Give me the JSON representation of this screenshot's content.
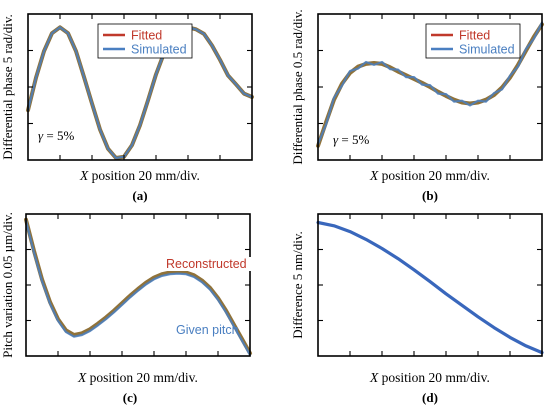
{
  "chart_data": [
    {
      "type": "line",
      "panel": "(a)",
      "ylabel": "Differential phase 5 rad/div.",
      "xlabel": "X position 20 mm/div.",
      "annotation": "γ = 5%",
      "legend": [
        "Fitted",
        "Simulated"
      ],
      "legend_position": "top-right",
      "x_divisions": 7,
      "y_divisions": 4,
      "xlim": [
        0,
        7
      ],
      "ylim": [
        -4,
        0.4
      ],
      "series": [
        {
          "name": "Fitted",
          "color": "#c0392b",
          "x": [
            0,
            0.25,
            0.5,
            0.75,
            1,
            1.25,
            1.5,
            1.75,
            2,
            2.25,
            2.5,
            2.75,
            3,
            3.25,
            3.5,
            3.75,
            4,
            4.25,
            4.5,
            4.75,
            5,
            5.25,
            5.5,
            5.75,
            6,
            6.25,
            6.5,
            6.75,
            7
          ],
          "y": [
            -2.5,
            -1.52,
            -0.72,
            -0.18,
            0,
            -0.18,
            -0.72,
            -1.5,
            -2.3,
            -3.08,
            -3.66,
            -3.94,
            -3.9,
            -3.55,
            -2.95,
            -2.2,
            -1.42,
            -0.78,
            -0.32,
            -0.04,
            0,
            -0.06,
            -0.2,
            -0.55,
            -0.98,
            -1.45,
            -1.72,
            -2.0,
            -2.1
          ]
        },
        {
          "name": "Simulated",
          "color": "#4a7fc1",
          "x": [
            0,
            0.25,
            0.5,
            0.75,
            1,
            1.25,
            1.5,
            1.75,
            2,
            2.25,
            2.5,
            2.75,
            3,
            3.25,
            3.5,
            3.75,
            4,
            4.25,
            4.5,
            4.75,
            5,
            5.25,
            5.5,
            5.75,
            6,
            6.25,
            6.5,
            6.75,
            7
          ],
          "y": [
            -2.5,
            -1.52,
            -0.72,
            -0.18,
            0,
            -0.18,
            -0.72,
            -1.5,
            -2.3,
            -3.08,
            -3.66,
            -3.94,
            -3.9,
            -3.55,
            -2.95,
            -2.2,
            -1.42,
            -0.78,
            -0.32,
            -0.04,
            0,
            -0.06,
            -0.2,
            -0.55,
            -0.98,
            -1.45,
            -1.72,
            -2.0,
            -2.1
          ]
        }
      ]
    },
    {
      "type": "line",
      "panel": "(b)",
      "ylabel": "Differential phase 0.5 rad/div.",
      "xlabel": "X position 20 mm/div.",
      "annotation": "γ = 5%",
      "legend": [
        "Fitted",
        "Simulated"
      ],
      "legend_position": "top-right",
      "x_divisions": 7,
      "y_divisions": 4,
      "xlim": [
        0,
        7
      ],
      "ylim": [
        -2.0,
        1.1
      ],
      "series": [
        {
          "name": "Fitted",
          "color": "#c0392b",
          "x": [
            0,
            0.25,
            0.5,
            0.75,
            1,
            1.25,
            1.5,
            1.75,
            2,
            2.25,
            2.5,
            2.75,
            3,
            3.25,
            3.5,
            3.75,
            4,
            4.25,
            4.5,
            4.75,
            5,
            5.25,
            5.5,
            5.75,
            6,
            6.25,
            6.5,
            6.75,
            7
          ],
          "y": [
            -1.7,
            -1.2,
            -0.72,
            -0.38,
            -0.15,
            -0.02,
            0.04,
            0.06,
            0.04,
            -0.03,
            -0.12,
            -0.2,
            -0.28,
            -0.36,
            -0.45,
            -0.55,
            -0.64,
            -0.72,
            -0.78,
            -0.8,
            -0.78,
            -0.72,
            -0.62,
            -0.46,
            -0.25,
            0.02,
            0.32,
            0.62,
            0.88
          ]
        },
        {
          "name": "Simulated",
          "color": "#4a7fc1",
          "x": [
            0,
            0.25,
            0.5,
            0.75,
            1,
            1.25,
            1.5,
            1.75,
            2,
            2.25,
            2.5,
            2.75,
            3,
            3.25,
            3.5,
            3.75,
            4,
            4.25,
            4.5,
            4.75,
            5,
            5.25,
            5.5,
            5.75,
            6,
            6.25,
            6.5,
            6.75,
            7
          ],
          "y": [
            -1.66,
            -1.25,
            -0.68,
            -0.42,
            -0.11,
            -0.06,
            0.08,
            0.02,
            0.08,
            -0.07,
            -0.08,
            -0.24,
            -0.24,
            -0.4,
            -0.41,
            -0.59,
            -0.6,
            -0.76,
            -0.74,
            -0.84,
            -0.74,
            -0.76,
            -0.58,
            -0.5,
            -0.21,
            -0.02,
            0.36,
            0.58,
            0.92
          ]
        }
      ]
    },
    {
      "type": "line",
      "panel": "(c)",
      "ylabel": "Pitch variation 0.05 µm/div.",
      "xlabel": "X position 20 mm/div.",
      "annotations": [
        "Reconstructed",
        "Given pitch"
      ],
      "x_divisions": 7,
      "y_divisions": 4,
      "xlim": [
        0,
        7
      ],
      "ylim": [
        -2.4,
        0.1
      ],
      "series": [
        {
          "name": "Reconstructed",
          "color": "#c0392b",
          "x": [
            0,
            0.25,
            0.5,
            0.75,
            1,
            1.25,
            1.5,
            1.75,
            2,
            2.25,
            2.5,
            2.75,
            3,
            3.25,
            3.5,
            3.75,
            4,
            4.25,
            4.5,
            4.75,
            5,
            5.25,
            5.5,
            5.75,
            6,
            6.25,
            6.5,
            6.75,
            7
          ],
          "y": [
            0,
            -0.55,
            -1.05,
            -1.45,
            -1.75,
            -1.95,
            -2.03,
            -2.0,
            -1.93,
            -1.83,
            -1.72,
            -1.6,
            -1.47,
            -1.34,
            -1.22,
            -1.11,
            -1.02,
            -0.96,
            -0.93,
            -0.92,
            -0.93,
            -0.98,
            -1.07,
            -1.2,
            -1.38,
            -1.6,
            -1.85,
            -2.1,
            -2.35
          ]
        },
        {
          "name": "Given pitch",
          "color": "#4a7fc1",
          "x": [
            0,
            0.25,
            0.5,
            0.75,
            1,
            1.25,
            1.5,
            1.75,
            2,
            2.25,
            2.5,
            2.75,
            3,
            3.25,
            3.5,
            3.75,
            4,
            4.25,
            4.5,
            4.75,
            5,
            5.25,
            5.5,
            5.75,
            6,
            6.25,
            6.5,
            6.75,
            7
          ],
          "y": [
            -0.02,
            -0.58,
            -1.08,
            -1.48,
            -1.78,
            -1.98,
            -2.06,
            -2.03,
            -1.96,
            -1.86,
            -1.75,
            -1.63,
            -1.5,
            -1.37,
            -1.25,
            -1.14,
            -1.05,
            -0.99,
            -0.96,
            -0.95,
            -0.96,
            -1.01,
            -1.1,
            -1.23,
            -1.41,
            -1.63,
            -1.88,
            -2.13,
            -2.38
          ]
        }
      ]
    },
    {
      "type": "line",
      "panel": "(d)",
      "ylabel": "Difference 5 nm/div.",
      "xlabel": "X position 20 mm/div.",
      "x_divisions": 7,
      "y_divisions": 4,
      "xlim": [
        0,
        7
      ],
      "ylim": [
        0,
        4.2
      ],
      "series": [
        {
          "name": "Difference",
          "color": "#2e5fb8",
          "x": [
            0,
            0.5,
            1,
            1.5,
            2,
            2.5,
            3,
            3.5,
            4,
            4.5,
            5,
            5.5,
            6,
            6.5,
            7
          ],
          "y": [
            3.95,
            3.85,
            3.68,
            3.45,
            3.18,
            2.88,
            2.55,
            2.2,
            1.84,
            1.5,
            1.16,
            0.84,
            0.55,
            0.3,
            0.1
          ]
        }
      ]
    }
  ]
}
